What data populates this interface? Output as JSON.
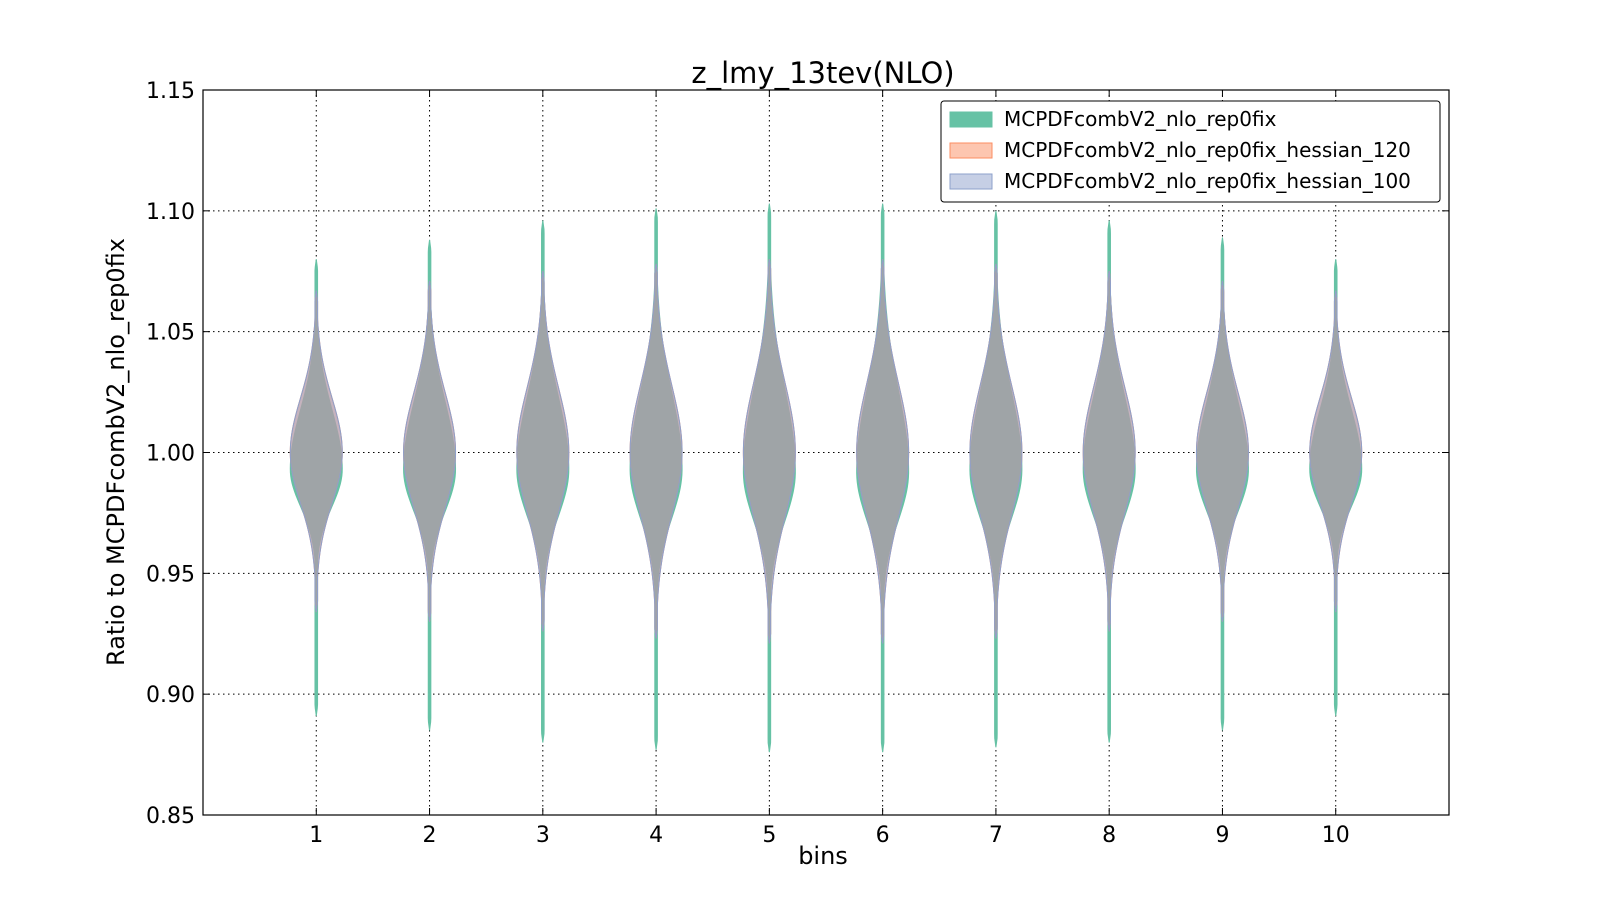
{
  "chart_data": {
    "type": "violin",
    "title": "z_lmy_13tev(NLO)",
    "xlabel": "bins",
    "ylabel": "Ratio to MCPDFcombV2_nlo_rep0fix",
    "ylim": [
      0.85,
      1.15
    ],
    "xlim": [
      0,
      11
    ],
    "yticks": [
      "0.85",
      "0.90",
      "0.95",
      "1.00",
      "1.05",
      "1.10",
      "1.15"
    ],
    "yticks_values": [
      0.85,
      0.9,
      0.95,
      1.0,
      1.05,
      1.1,
      1.15
    ],
    "categories": [
      "1",
      "2",
      "3",
      "4",
      "5",
      "6",
      "7",
      "8",
      "9",
      "10"
    ],
    "grid": true,
    "legend_position": "top-right",
    "series": [
      {
        "name": "MCPDFcombV2_nlo_rep0fix",
        "color": "#66c2a5",
        "min": [
          0.891,
          0.885,
          0.88,
          0.877,
          0.876,
          0.876,
          0.878,
          0.88,
          0.885,
          0.891
        ],
        "max": [
          1.08,
          1.088,
          1.096,
          1.101,
          1.103,
          1.103,
          1.1,
          1.096,
          1.089,
          1.08
        ],
        "center": [
          0.993,
          0.993,
          0.993,
          0.993,
          0.992,
          0.992,
          0.993,
          0.993,
          0.993,
          0.993
        ],
        "core_low": [
          0.977,
          0.975,
          0.973,
          0.972,
          0.971,
          0.971,
          0.972,
          0.973,
          0.975,
          0.977
        ],
        "core_high": [
          1.017,
          1.02,
          1.022,
          1.024,
          1.025,
          1.025,
          1.024,
          1.022,
          1.02,
          1.017
        ]
      },
      {
        "name": "MCPDFcombV2_nlo_rep0fix_hessian_120",
        "color": "#fc8d62",
        "min": [
          0.934,
          0.93,
          0.926,
          0.923,
          0.921,
          0.921,
          0.923,
          0.926,
          0.93,
          0.934
        ],
        "max": [
          1.067,
          1.071,
          1.075,
          1.078,
          1.08,
          1.08,
          1.078,
          1.075,
          1.071,
          1.067
        ],
        "center": [
          1.0,
          1.0,
          1.0,
          1.0,
          1.0,
          1.0,
          1.0,
          1.0,
          1.0,
          1.0
        ],
        "core_low": [
          0.978,
          0.976,
          0.974,
          0.973,
          0.972,
          0.972,
          0.973,
          0.974,
          0.976,
          0.978
        ],
        "core_high": [
          1.022,
          1.024,
          1.026,
          1.027,
          1.028,
          1.028,
          1.027,
          1.026,
          1.024,
          1.022
        ]
      },
      {
        "name": "MCPDFcombV2_nlo_rep0fix_hessian_100",
        "color": "#8da0cb",
        "min": [
          0.934,
          0.93,
          0.926,
          0.923,
          0.921,
          0.921,
          0.923,
          0.926,
          0.93,
          0.934
        ],
        "max": [
          1.067,
          1.071,
          1.075,
          1.078,
          1.08,
          1.08,
          1.078,
          1.075,
          1.071,
          1.067
        ],
        "center": [
          1.0,
          1.0,
          1.0,
          1.0,
          1.0,
          1.0,
          1.0,
          1.0,
          1.0,
          1.0
        ],
        "core_low": [
          0.978,
          0.976,
          0.974,
          0.973,
          0.972,
          0.972,
          0.973,
          0.974,
          0.976,
          0.978
        ],
        "core_high": [
          1.022,
          1.024,
          1.026,
          1.027,
          1.028,
          1.028,
          1.027,
          1.026,
          1.024,
          1.022
        ]
      }
    ]
  }
}
